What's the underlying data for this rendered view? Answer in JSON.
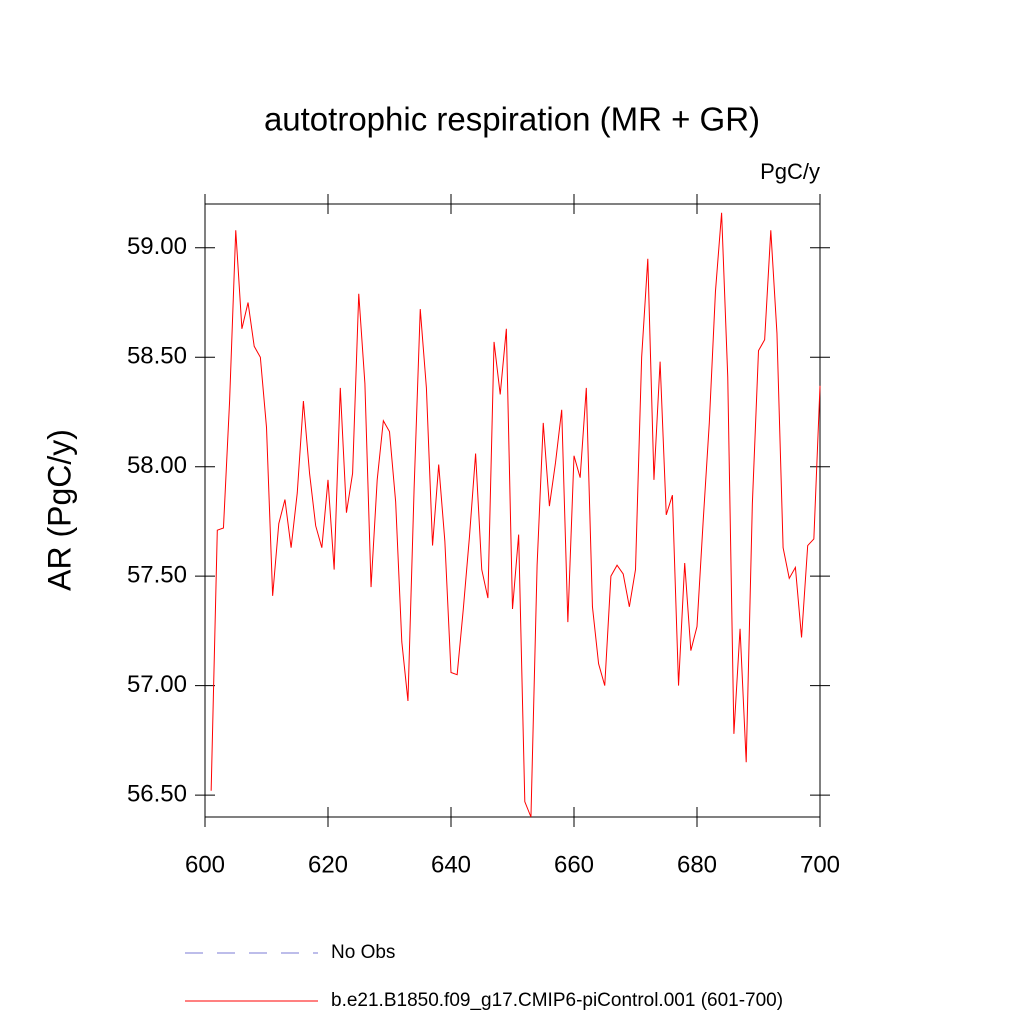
{
  "chart_data": {
    "type": "line",
    "title": "autotrophic respiration (MR + GR)",
    "units": "PgC/y",
    "y_label": "AR  (PgC/y)",
    "x": [
      601,
      602,
      603,
      604,
      605,
      606,
      607,
      608,
      609,
      610,
      611,
      612,
      613,
      614,
      615,
      616,
      617,
      618,
      619,
      620,
      621,
      622,
      623,
      624,
      625,
      626,
      627,
      628,
      629,
      630,
      631,
      632,
      633,
      634,
      635,
      636,
      637,
      638,
      639,
      640,
      641,
      642,
      643,
      644,
      645,
      646,
      647,
      648,
      649,
      650,
      651,
      652,
      653,
      654,
      655,
      656,
      657,
      658,
      659,
      660,
      661,
      662,
      663,
      664,
      665,
      666,
      667,
      668,
      669,
      670,
      671,
      672,
      673,
      674,
      675,
      676,
      677,
      678,
      679,
      680,
      681,
      682,
      683,
      684,
      685,
      686,
      687,
      688,
      689,
      690,
      691,
      692,
      693,
      694,
      695,
      696,
      697,
      698,
      699,
      700
    ],
    "series": [
      {
        "name": "b.e21.B1850.f09_g17.CMIP6-piControl.001 (601-700)",
        "color": "#ff0000",
        "values": [
          56.52,
          57.71,
          57.72,
          58.3,
          59.08,
          58.63,
          58.75,
          58.55,
          58.5,
          58.18,
          57.41,
          57.74,
          57.85,
          57.63,
          57.88,
          58.3,
          57.97,
          57.73,
          57.63,
          57.94,
          57.53,
          58.36,
          57.79,
          57.97,
          58.79,
          58.38,
          57.45,
          57.94,
          58.21,
          58.16,
          57.84,
          57.2,
          56.93,
          57.9,
          58.72,
          58.36,
          57.64,
          58.01,
          57.66,
          57.06,
          57.05,
          57.35,
          57.68,
          58.06,
          57.53,
          57.4,
          58.57,
          58.33,
          58.63,
          57.35,
          57.69,
          56.47,
          56.4,
          57.55,
          58.2,
          57.82,
          58.02,
          58.26,
          57.29,
          58.05,
          57.95,
          58.36,
          57.36,
          57.1,
          57.0,
          57.5,
          57.55,
          57.51,
          57.36,
          57.53,
          58.5,
          58.95,
          57.94,
          58.48,
          57.78,
          57.87,
          57.0,
          57.56,
          57.16,
          57.27,
          57.75,
          58.2,
          58.8,
          59.16,
          58.41,
          56.78,
          57.26,
          56.65,
          57.83,
          58.53,
          58.58,
          59.08,
          58.61,
          57.63,
          57.49,
          57.54,
          57.22,
          57.64,
          57.67,
          58.37
        ]
      }
    ],
    "extra_legend": [
      {
        "label": "No Obs",
        "color": "#7b7bd6",
        "style": "dashed"
      }
    ],
    "xlim": [
      600,
      700
    ],
    "xticks": [
      600,
      620,
      640,
      660,
      680,
      700
    ],
    "ylim": [
      56.4,
      59.2
    ],
    "yticks": [
      {
        "value": 56.5,
        "label": "56.50"
      },
      {
        "value": 57,
        "label": "57.00"
      },
      {
        "value": 57.5,
        "label": "57.50"
      },
      {
        "value": 58,
        "label": "58.00"
      },
      {
        "value": 58.5,
        "label": "58.50"
      },
      {
        "value": 59,
        "label": "59.00"
      }
    ]
  }
}
